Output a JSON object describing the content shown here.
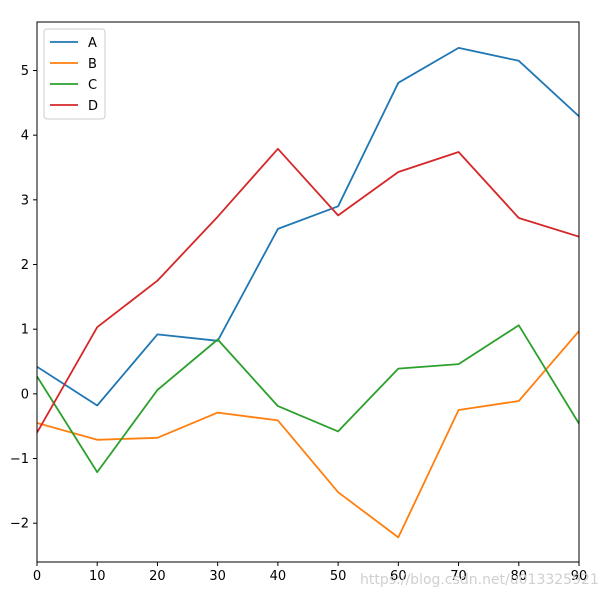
{
  "chart_data": {
    "type": "line",
    "x": [
      0,
      10,
      20,
      30,
      40,
      50,
      60,
      70,
      80,
      90
    ],
    "xlim": [
      0,
      90
    ],
    "ylim": [
      -2.6,
      5.75
    ],
    "xticks": [
      0,
      10,
      20,
      30,
      40,
      50,
      60,
      70,
      80,
      90
    ],
    "yticks": [
      -2,
      -1,
      0,
      1,
      2,
      3,
      4,
      5
    ],
    "title": "",
    "xlabel": "",
    "ylabel": "",
    "grid": false,
    "legend_position": "top-left",
    "series": [
      {
        "name": "A",
        "color": "#1f77b4",
        "values": [
          0.42,
          -0.18,
          0.92,
          0.82,
          2.55,
          2.9,
          4.81,
          5.35,
          5.15,
          4.29
        ]
      },
      {
        "name": "B",
        "color": "#ff7f0e",
        "values": [
          -0.45,
          -0.71,
          -0.68,
          -0.29,
          -0.41,
          -1.52,
          -2.22,
          -0.25,
          -0.11,
          0.97
        ]
      },
      {
        "name": "C",
        "color": "#2ca02c",
        "values": [
          0.27,
          -1.21,
          0.06,
          0.84,
          -0.19,
          -0.58,
          0.39,
          0.46,
          1.06,
          -0.46
        ]
      },
      {
        "name": "D",
        "color": "#d62728",
        "values": [
          -0.6,
          1.03,
          1.75,
          2.74,
          3.79,
          2.76,
          3.43,
          3.74,
          2.72,
          2.43
        ]
      }
    ]
  },
  "watermark": "https://blog.csdn.net/u013325921"
}
